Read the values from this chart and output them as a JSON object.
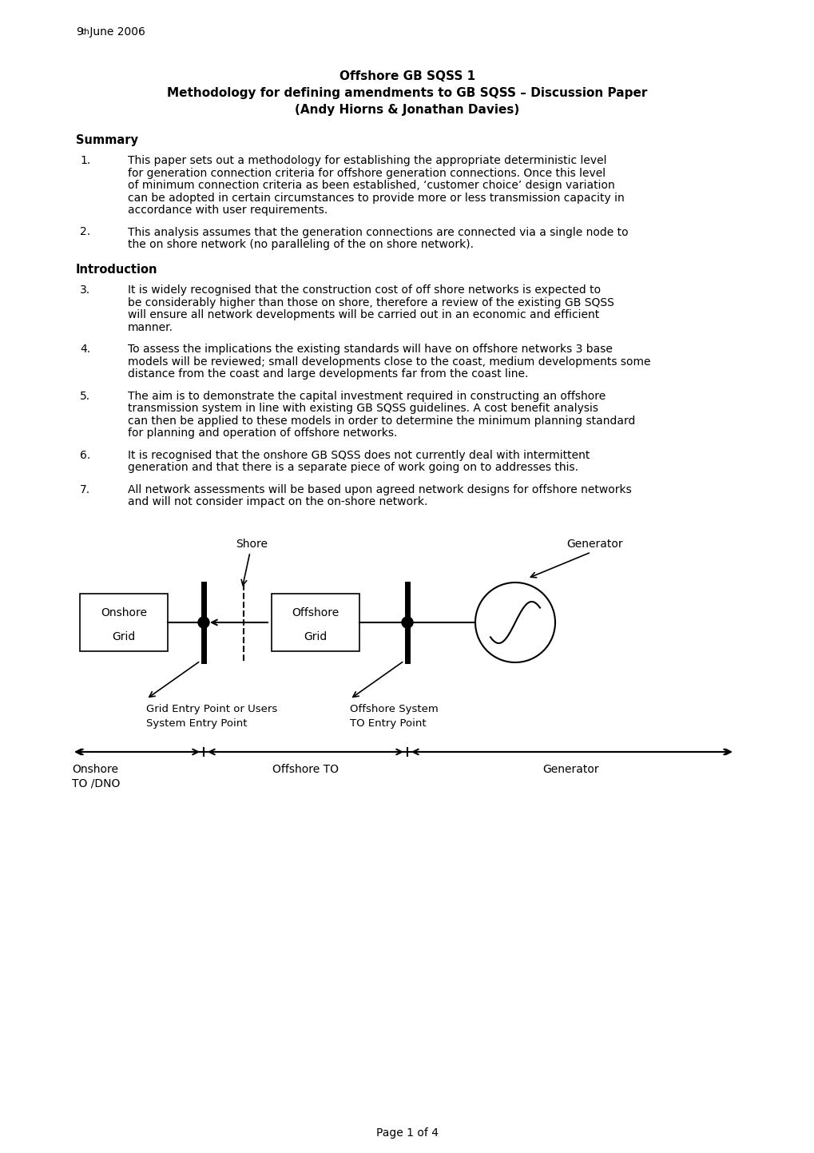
{
  "date_line": "9",
  "date_super": "th",
  "date_rest": " June 2006",
  "title_line1": "Offshore GB SQSS 1",
  "title_line2": "Methodology for defining amendments to GB SQSS – Discussion Paper",
  "title_line3": "(Andy Hiorns & Jonathan Davies)",
  "summary_heading": "Summary",
  "intro_heading": "Introduction",
  "items": [
    {
      "num": "1.",
      "text": "This paper sets out a methodology for establishing the appropriate deterministic level for generation connection criteria for offshore generation connections. Once this level of minimum connection criteria as been established, ‘customer choice’ design variation can be adopted in certain circumstances to provide more or less transmission capacity in accordance with user requirements."
    },
    {
      "num": "2.",
      "text": "This analysis assumes that the generation connections are connected via a single node to the on shore network (no paralleling of the on shore network)."
    },
    {
      "num": "3.",
      "text": "It is widely recognised that the construction cost of off shore networks is expected to be considerably higher than those on shore, therefore a review of the existing GB SQSS will ensure all network developments will be carried out in an economic and efficient manner."
    },
    {
      "num": "4.",
      "text": "To assess the implications the existing standards will have on offshore networks 3 base models will be reviewed; small developments close to the coast, medium developments some distance from the coast and large developments far from the coast line."
    },
    {
      "num": "5.",
      "text": "The aim is to demonstrate the capital investment required in constructing an offshore transmission system in line with existing GB SQSS guidelines. A cost benefit analysis can then be applied to these models in order to determine the minimum planning standard for planning and operation of offshore networks."
    },
    {
      "num": "6.",
      "text": "It is recognised that the onshore GB SQSS does not currently deal with intermittent generation and that there is a separate piece of work going on to addresses this."
    },
    {
      "num": "7.",
      "text": "All network assessments will be based upon agreed network designs for offshore networks and will not consider impact on the on-shore network."
    }
  ],
  "page_footer": "Page 1 of 4",
  "bg_color": "#ffffff",
  "text_color": "#000000"
}
